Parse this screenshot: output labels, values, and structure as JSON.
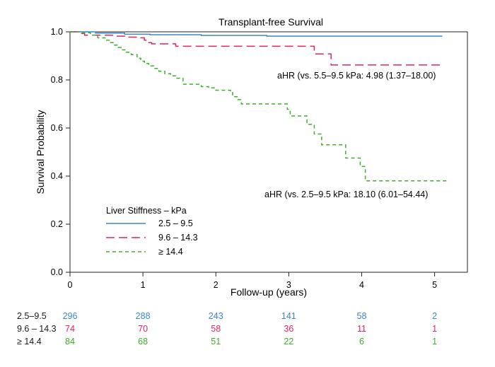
{
  "chart_data": {
    "type": "line",
    "step": true,
    "title": "Transplant-free Survival",
    "xlabel": "Follow-up (years)",
    "ylabel": "Survival Probability",
    "xlim": [
      0,
      5.45
    ],
    "ylim": [
      0,
      1.0
    ],
    "x_ticks": [
      "0",
      "1",
      "2",
      "3",
      "4",
      "5"
    ],
    "y_ticks": [
      "0.0",
      "0.2",
      "0.4",
      "0.6",
      "0.8",
      "1.0"
    ],
    "grid": false,
    "legend": {
      "title": "Liver Stiffness – kPa",
      "placement": "bottom-left"
    },
    "series": [
      {
        "name": "2.5 – 9.5",
        "color": "#3b86c6",
        "dash": "solid",
        "points": [
          [
            0,
            1.0
          ],
          [
            0.35,
            0.995
          ],
          [
            0.75,
            0.99
          ],
          [
            1.1,
            0.988
          ],
          [
            1.8,
            0.985
          ],
          [
            2.7,
            0.982
          ],
          [
            5.1,
            0.98
          ]
        ]
      },
      {
        "name": "9.6 – 14.3",
        "color": "#e0245e",
        "dash": "long",
        "points": [
          [
            0,
            1.0
          ],
          [
            0.12,
            0.993
          ],
          [
            0.2,
            0.986
          ],
          [
            0.6,
            0.982
          ],
          [
            0.75,
            0.978
          ],
          [
            0.97,
            0.975
          ],
          [
            1.02,
            0.965
          ],
          [
            1.05,
            0.955
          ],
          [
            1.12,
            0.95
          ],
          [
            1.45,
            0.94
          ],
          [
            3.35,
            0.908
          ],
          [
            3.58,
            0.862
          ],
          [
            5.1,
            0.862
          ]
        ]
      },
      {
        "name": "≥ 14.4",
        "color": "#3fae2a",
        "dash": "short",
        "points": [
          [
            0,
            1.0
          ],
          [
            0.15,
            0.996
          ],
          [
            0.28,
            0.986
          ],
          [
            0.38,
            0.975
          ],
          [
            0.48,
            0.965
          ],
          [
            0.55,
            0.955
          ],
          [
            0.6,
            0.945
          ],
          [
            0.66,
            0.935
          ],
          [
            0.72,
            0.925
          ],
          [
            0.77,
            0.915
          ],
          [
            0.84,
            0.905
          ],
          [
            0.92,
            0.89
          ],
          [
            0.97,
            0.878
          ],
          [
            1.02,
            0.868
          ],
          [
            1.08,
            0.858
          ],
          [
            1.15,
            0.848
          ],
          [
            1.22,
            0.836
          ],
          [
            1.3,
            0.826
          ],
          [
            1.38,
            0.817
          ],
          [
            1.45,
            0.807
          ],
          [
            1.55,
            0.782
          ],
          [
            1.72,
            0.782
          ],
          [
            1.8,
            0.772
          ],
          [
            1.9,
            0.767
          ],
          [
            2.0,
            0.757
          ],
          [
            2.2,
            0.747
          ],
          [
            2.23,
            0.73
          ],
          [
            2.3,
            0.718
          ],
          [
            2.35,
            0.7
          ],
          [
            2.95,
            0.7
          ],
          [
            2.98,
            0.678
          ],
          [
            3.02,
            0.65
          ],
          [
            3.25,
            0.615
          ],
          [
            3.35,
            0.575
          ],
          [
            3.45,
            0.53
          ],
          [
            3.6,
            0.53
          ],
          [
            3.78,
            0.475
          ],
          [
            3.98,
            0.44
          ],
          [
            4.05,
            0.38
          ],
          [
            5.2,
            0.38
          ]
        ]
      }
    ],
    "annotations": [
      "aHR (vs. 5.5–9.5 kPa: 4.98 (1.37–18.00)",
      "aHR (vs. 2.5–9.5 kPa: 18.10 (6.01–54.44)"
    ]
  },
  "risk_table": {
    "times": [
      0,
      1,
      2,
      3,
      4,
      5
    ],
    "rows": [
      {
        "label": "2.5–9.5",
        "color": "#3b86c6",
        "values": [
          "296",
          "288",
          "243",
          "141",
          "58",
          "2"
        ]
      },
      {
        "label": "9.6 – 14.3",
        "color": "#e0245e",
        "values": [
          "74",
          "70",
          "58",
          "36",
          "11",
          "1"
        ]
      },
      {
        "label": "≥ 14.4",
        "color": "#3fae2a",
        "values": [
          "84",
          "68",
          "51",
          "22",
          "6",
          "1"
        ]
      }
    ]
  }
}
